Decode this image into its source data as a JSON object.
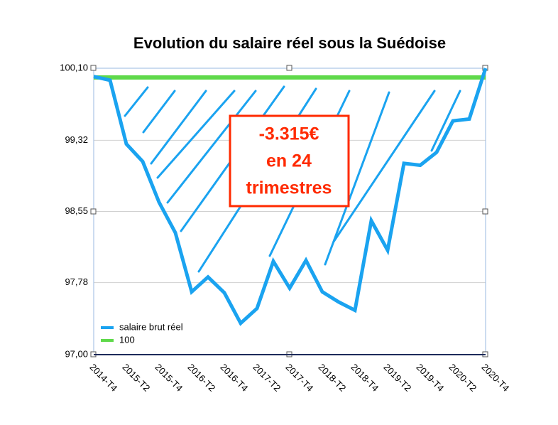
{
  "chart_data": {
    "type": "line",
    "title": "Evolution du salaire réel sous la Suédoise",
    "categories": [
      "2014-T4",
      null,
      "2015-T2",
      null,
      "2015-T4",
      null,
      "2016-T2",
      null,
      "2016-T4",
      null,
      "2017-T2",
      null,
      "2017-T4",
      null,
      "2018-T2",
      null,
      "2018-T4",
      null,
      "2019-T2",
      null,
      "2019-T4",
      null,
      "2020-T2",
      null,
      "2020-T4"
    ],
    "series": [
      {
        "name": "salaire brut réel",
        "color": "#1aa3f0",
        "values": [
          100.01,
          99.97,
          99.28,
          99.09,
          98.65,
          98.32,
          97.68,
          97.84,
          97.67,
          97.34,
          97.5,
          98.01,
          97.72,
          98.02,
          97.68,
          97.57,
          97.48,
          98.45,
          98.13,
          99.07,
          99.05,
          99.19,
          99.53,
          99.55,
          100.1
        ]
      },
      {
        "name": "100",
        "color": "#5fd94a",
        "values": [
          100,
          100,
          100,
          100,
          100,
          100,
          100,
          100,
          100,
          100,
          100,
          100,
          100,
          100,
          100,
          100,
          100,
          100,
          100,
          100,
          100,
          100,
          100,
          100,
          100
        ]
      }
    ],
    "ylim": [
      97,
      100.1
    ],
    "yticks": [
      {
        "value": 97,
        "label": "97,00"
      },
      {
        "value": 97.78,
        "label": "97,78"
      },
      {
        "value": 98.55,
        "label": "98,55"
      },
      {
        "value": 99.32,
        "label": "99,32"
      },
      {
        "value": 100.1,
        "label": "100,10"
      }
    ],
    "grid": true,
    "legend": "lower left",
    "annotation": [
      "-3.315€",
      "en 24",
      "trimestres"
    ]
  }
}
